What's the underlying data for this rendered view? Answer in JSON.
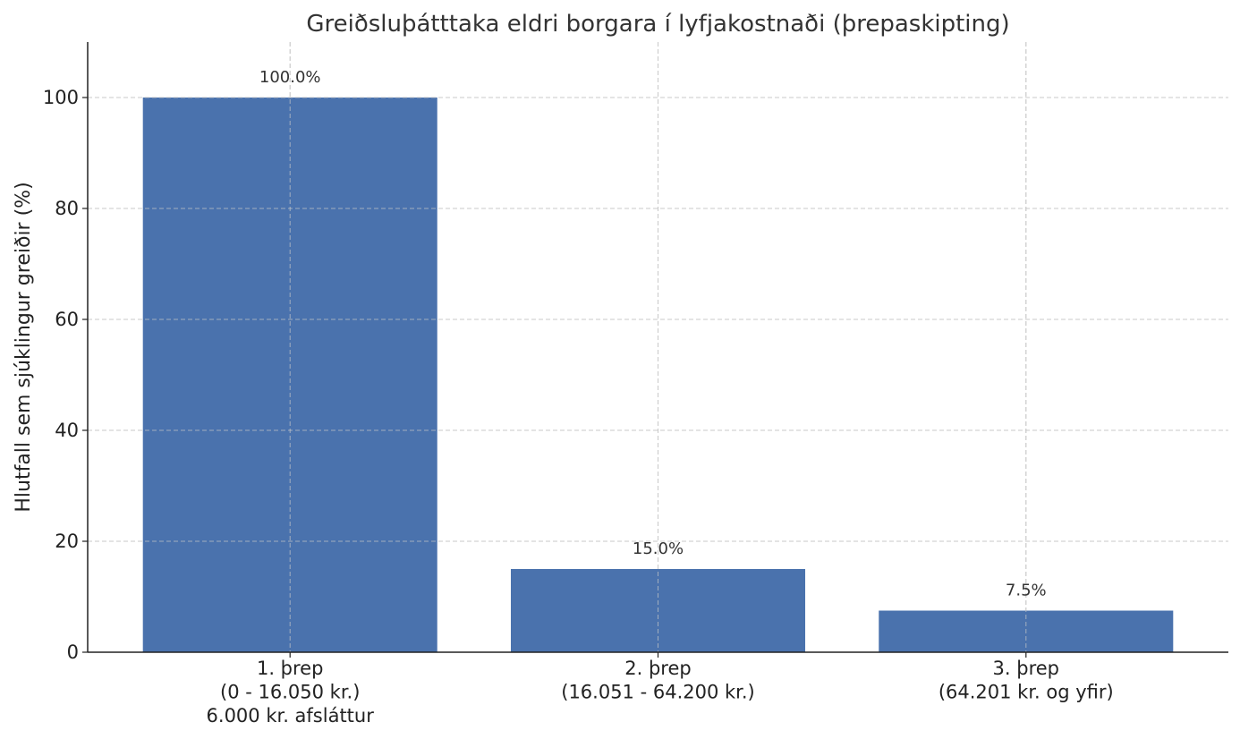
{
  "chart_data": {
    "type": "bar",
    "title": "Greiðsluþátttaka eldri borgara í lyfjakostnaði (þrepaskipting)",
    "xlabel": "",
    "ylabel": "Hlutfall sem sjúklingur greiðir (%)",
    "categories": [
      [
        "1. þrep",
        "(0 - 16.050 kr.)",
        "6.000 kr. afsláttur"
      ],
      [
        "2. þrep",
        "(16.051 - 64.200 kr.)"
      ],
      [
        "3. þrep",
        "(64.201 kr. og yfir)"
      ]
    ],
    "values": [
      100.0,
      15.0,
      7.5
    ],
    "data_labels": [
      "100.0%",
      "15.0%",
      "7.5%"
    ],
    "ylim": [
      0,
      110
    ],
    "yticks": [
      0,
      20,
      40,
      60,
      80,
      100
    ],
    "grid": true,
    "legend": "none",
    "bar_color": "#4a72ad"
  }
}
